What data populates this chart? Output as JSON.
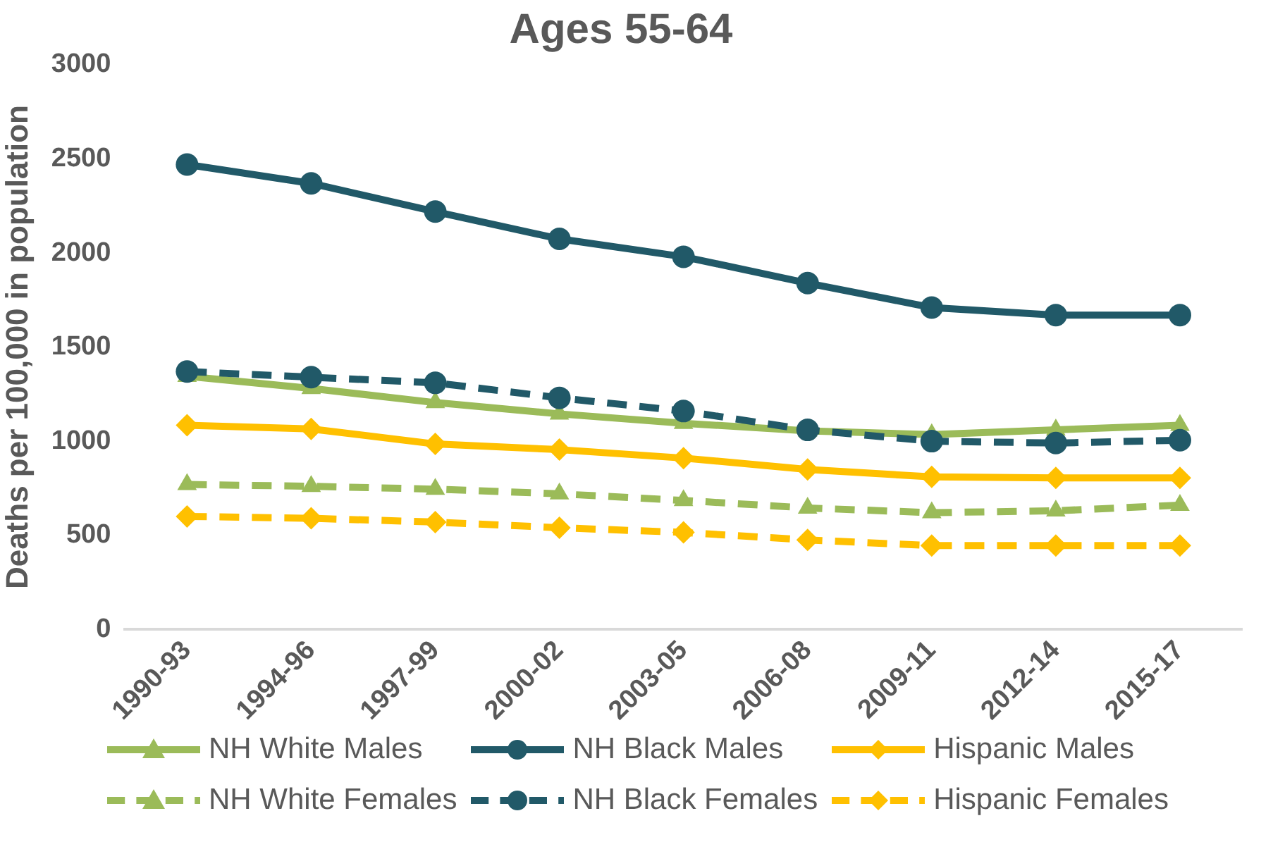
{
  "chart_data": {
    "type": "line",
    "title": "Ages 55-64",
    "ylabel": "Deaths per 100,000 in population",
    "categories": [
      "1990-93",
      "1994-96",
      "1997-99",
      "2000-02",
      "2003-05",
      "2006-08",
      "2009-11",
      "2012-14",
      "2015-17"
    ],
    "ylim": [
      0,
      3000
    ],
    "yticks": [
      0,
      500,
      1000,
      1500,
      2000,
      2500,
      3000
    ],
    "grid": false,
    "legend": "bottom",
    "series": [
      {
        "name": "NH White Males",
        "color": "#9bbb59",
        "marker": "triangle",
        "line_style": "solid",
        "values": [
          1345,
          1280,
          1205,
          1145,
          1095,
          1055,
          1035,
          1060,
          1085
        ]
      },
      {
        "name": "NH Black Males",
        "color": "#215968",
        "marker": "circle",
        "line_style": "solid",
        "values": [
          2470,
          2370,
          2220,
          2075,
          1980,
          1840,
          1710,
          1670,
          1670
        ]
      },
      {
        "name": "Hispanic Males",
        "color": "#ffc000",
        "marker": "diamond",
        "line_style": "solid",
        "values": [
          1085,
          1065,
          985,
          955,
          910,
          850,
          810,
          805,
          805
        ]
      },
      {
        "name": "NH White Females",
        "color": "#9bbb59",
        "marker": "triangle",
        "line_style": "dashed",
        "values": [
          770,
          760,
          745,
          720,
          685,
          645,
          620,
          630,
          660
        ]
      },
      {
        "name": "NH Black Females",
        "color": "#215968",
        "marker": "circle",
        "line_style": "dashed",
        "values": [
          1370,
          1340,
          1310,
          1230,
          1160,
          1060,
          1000,
          990,
          1005
        ]
      },
      {
        "name": "Hispanic Females",
        "color": "#ffc000",
        "marker": "diamond",
        "line_style": "dashed",
        "values": [
          600,
          590,
          570,
          540,
          515,
          475,
          445,
          445,
          445
        ]
      }
    ]
  }
}
